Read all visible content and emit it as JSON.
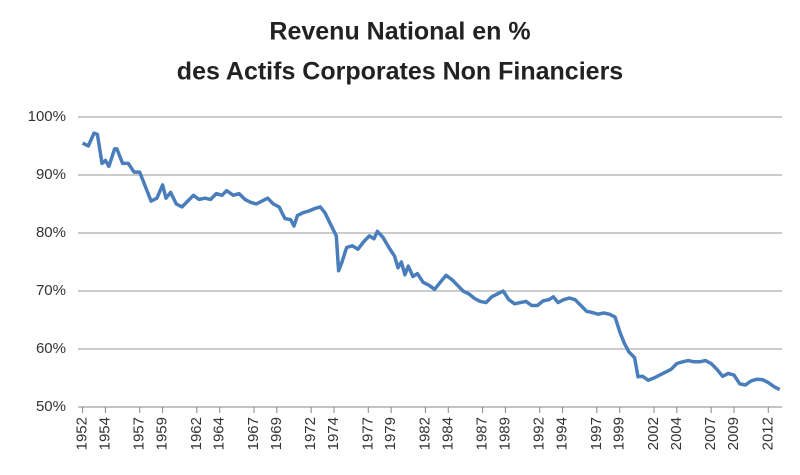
{
  "chart_data": {
    "type": "line",
    "title": [
      "Revenu National en %",
      "des Actifs Corporates Non Financiers"
    ],
    "x": [
      1952.0,
      1952.5,
      1953.0,
      1953.3,
      1953.7,
      1954.0,
      1954.3,
      1954.8,
      1955.0,
      1955.5,
      1956.0,
      1956.5,
      1957.0,
      1957.5,
      1958.0,
      1958.5,
      1959.0,
      1959.3,
      1959.7,
      1960.2,
      1960.7,
      1961.2,
      1961.7,
      1962.2,
      1962.7,
      1963.2,
      1963.7,
      1964.2,
      1964.6,
      1965.2,
      1965.7,
      1966.2,
      1966.7,
      1967.2,
      1967.7,
      1968.2,
      1968.7,
      1969.2,
      1969.7,
      1970.2,
      1970.5,
      1970.8,
      1971.3,
      1971.8,
      1972.3,
      1972.8,
      1973.2,
      1973.7,
      1974.2,
      1974.4,
      1974.7,
      1975.1,
      1975.6,
      1976.1,
      1976.6,
      1977.1,
      1977.5,
      1977.8,
      1978.3,
      1978.8,
      1979.3,
      1979.6,
      1979.9,
      1980.2,
      1980.5,
      1980.9,
      1981.3,
      1981.8,
      1982.3,
      1982.8,
      1983.3,
      1983.8,
      1984.3,
      1984.8,
      1985.3,
      1985.8,
      1986.3,
      1986.8,
      1987.3,
      1987.8,
      1988.3,
      1988.8,
      1989.3,
      1989.8,
      1990.3,
      1990.8,
      1991.3,
      1991.8,
      1992.3,
      1992.8,
      1993.2,
      1993.6,
      1994.1,
      1994.6,
      1995.1,
      1995.6,
      1996.1,
      1996.6,
      1997.1,
      1997.6,
      1998.1,
      1998.6,
      1999.0,
      1999.4,
      1999.8,
      2000.3,
      2000.6,
      2001.0,
      2001.5,
      2002.0,
      2002.5,
      2003.0,
      2003.5,
      2004.0,
      2004.5,
      2005.0,
      2005.5,
      2006.0,
      2006.5,
      2007.0,
      2007.5,
      2008.0,
      2008.5,
      2009.0,
      2009.5,
      2010.0,
      2010.5,
      2011.0,
      2011.5,
      2012.0,
      2012.5,
      2013.0
    ],
    "values": [
      95.5,
      95,
      97.2,
      97,
      92,
      92.5,
      91.5,
      94.5,
      94.5,
      92,
      92,
      90.5,
      90.5,
      88,
      85.5,
      86,
      88.3,
      86,
      87,
      85,
      84.5,
      85.5,
      86.5,
      85.8,
      86,
      85.8,
      86.8,
      86.5,
      87.3,
      86.5,
      86.8,
      85.8,
      85.3,
      85,
      85.5,
      86,
      85,
      84.5,
      82.5,
      82.3,
      81.2,
      83,
      83.5,
      83.8,
      84.2,
      84.5,
      83.5,
      81.5,
      79.5,
      73.5,
      75,
      77.5,
      77.8,
      77.2,
      78.5,
      79.5,
      79,
      80.3,
      79.2,
      77.5,
      76,
      74,
      75,
      72.8,
      74.3,
      72.5,
      73,
      71.5,
      71,
      70.3,
      71.5,
      72.7,
      72,
      71,
      70,
      69.5,
      68.7,
      68.2,
      68,
      69,
      69.5,
      70,
      68.5,
      67.8,
      68,
      68.2,
      67.5,
      67.5,
      68.3,
      68.5,
      69,
      68,
      68.5,
      68.8,
      68.5,
      67.5,
      66.5,
      66.3,
      66,
      66.2,
      66,
      65.5,
      63,
      61,
      59.5,
      58.5,
      55.2,
      55.3,
      54.6,
      55,
      55.5,
      56,
      56.5,
      57.5,
      57.8,
      58,
      57.8,
      57.8,
      58,
      57.5,
      56.5,
      55.3,
      55.8,
      55.5,
      54,
      53.8,
      54.5,
      54.8,
      54.7,
      54.2,
      53.5,
      53
    ],
    "color": "#4a7ebb",
    "xlim": [
      1951.6,
      2013.2
    ],
    "xticks": [
      1952,
      1954,
      1957,
      1959,
      1962,
      1964,
      1967,
      1969,
      1972,
      1974,
      1977,
      1979,
      1982,
      1984,
      1987,
      1989,
      1992,
      1994,
      1997,
      1999,
      2002,
      2004,
      2007,
      2009,
      2012
    ],
    "ylim": [
      50,
      100
    ],
    "yticks": [
      {
        "value": 50,
        "label": "50%"
      },
      {
        "value": 60,
        "label": "60%"
      },
      {
        "value": 70,
        "label": "70%"
      },
      {
        "value": 80,
        "label": "80%"
      },
      {
        "value": 90,
        "label": "90%"
      },
      {
        "value": 100,
        "label": "100%"
      }
    ],
    "grid": true
  }
}
